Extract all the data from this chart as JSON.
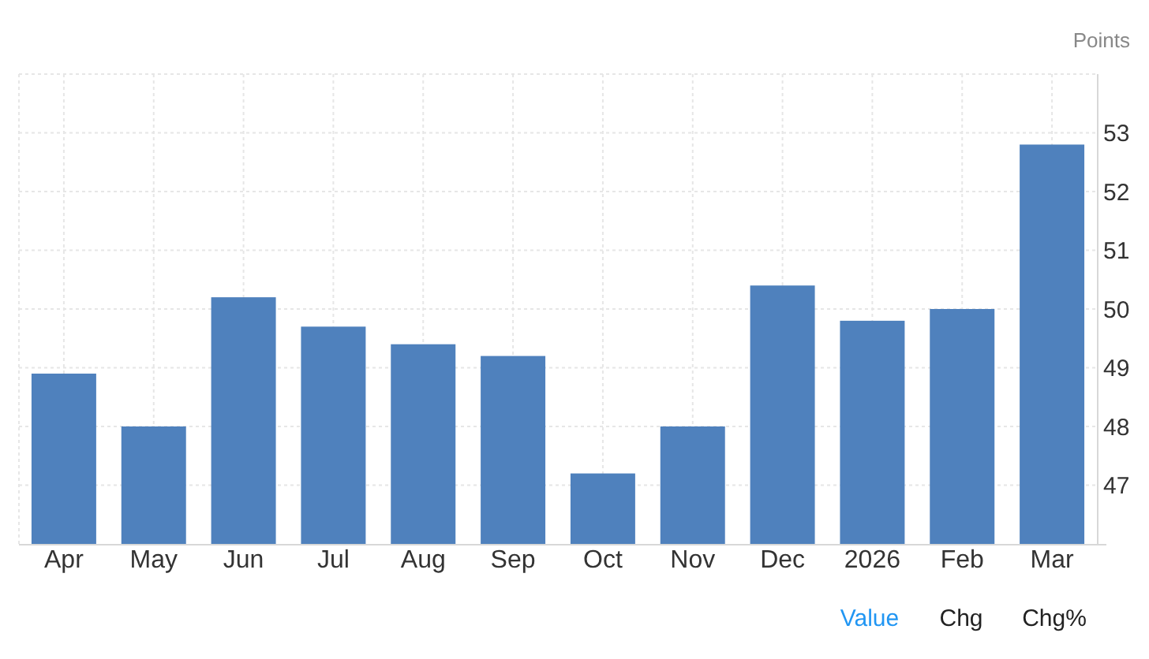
{
  "chart_data": {
    "type": "bar",
    "ylabel": "Points",
    "categories": [
      "Apr",
      "May",
      "Jun",
      "Jul",
      "Aug",
      "Sep",
      "Oct",
      "Nov",
      "Dec",
      "2026",
      "Feb",
      "Mar"
    ],
    "values": [
      48.9,
      48.0,
      50.2,
      49.7,
      49.4,
      49.2,
      47.2,
      48.0,
      50.4,
      49.8,
      50.0,
      52.8
    ],
    "color": "#4f81bd",
    "ylim": [
      46,
      54
    ],
    "yticks": [
      47,
      48,
      49,
      50,
      51,
      52,
      53
    ],
    "grid": true,
    "annotations": [
      "Value",
      "Chg",
      "Chg%"
    ]
  }
}
